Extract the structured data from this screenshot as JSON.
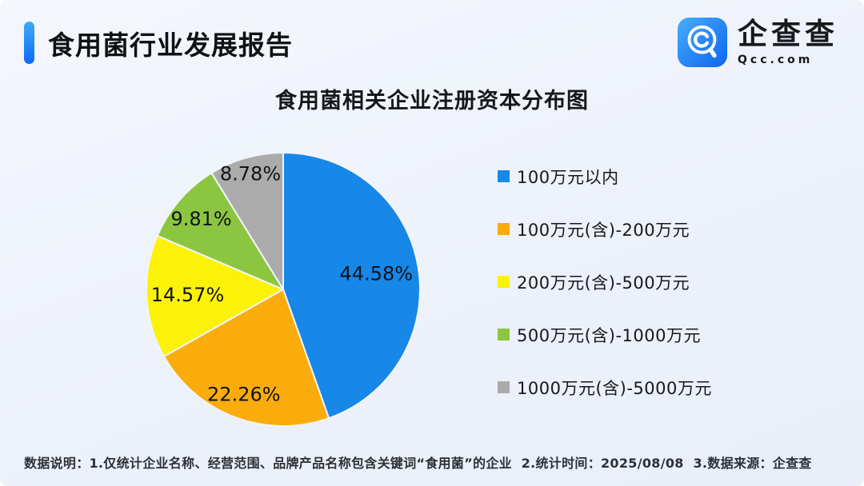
{
  "theme": {
    "accent_light": "#3fa9f8",
    "accent_dark": "#0a6cf6",
    "background": "#edf1fa",
    "text_dark": "#16181c"
  },
  "header": {
    "title": "食用菌行业发展报告",
    "logo": {
      "name": "企查查",
      "domain": "Qcc.com"
    }
  },
  "chart_data": {
    "type": "pie",
    "title": "食用菌相关企业注册资本分布图",
    "unit": "%",
    "start_angle_deg": 0,
    "direction": "clockwise",
    "legend_position": "right",
    "slices": [
      {
        "label": "100万元以内",
        "value": 44.58,
        "display": "44.58%",
        "color": "#1787e8"
      },
      {
        "label": "100万元(含)-200万元",
        "value": 22.26,
        "display": "22.26%",
        "color": "#fbac0d"
      },
      {
        "label": "200万元(含)-500万元",
        "value": 14.57,
        "display": "14.57%",
        "color": "#fcf208"
      },
      {
        "label": "500万元(含)-1000万元",
        "value": 9.81,
        "display": "9.81%",
        "color": "#8cc640"
      },
      {
        "label": "1000万元(含)-5000万元",
        "value": 8.78,
        "display": "8.78%",
        "color": "#ababab"
      }
    ],
    "layout": {
      "label_radius_factors": [
        0.69,
        0.82,
        0.7,
        0.79,
        0.88
      ],
      "radius": 171,
      "slice_border_color": "#f2f5fb",
      "grid": false
    }
  },
  "footnote": "数据说明：1.仅统计企业名称、经营范围、品牌产品名称包含关键词“食用菌”的企业  2.统计时间：2025/08/08  3.数据来源：企查查"
}
